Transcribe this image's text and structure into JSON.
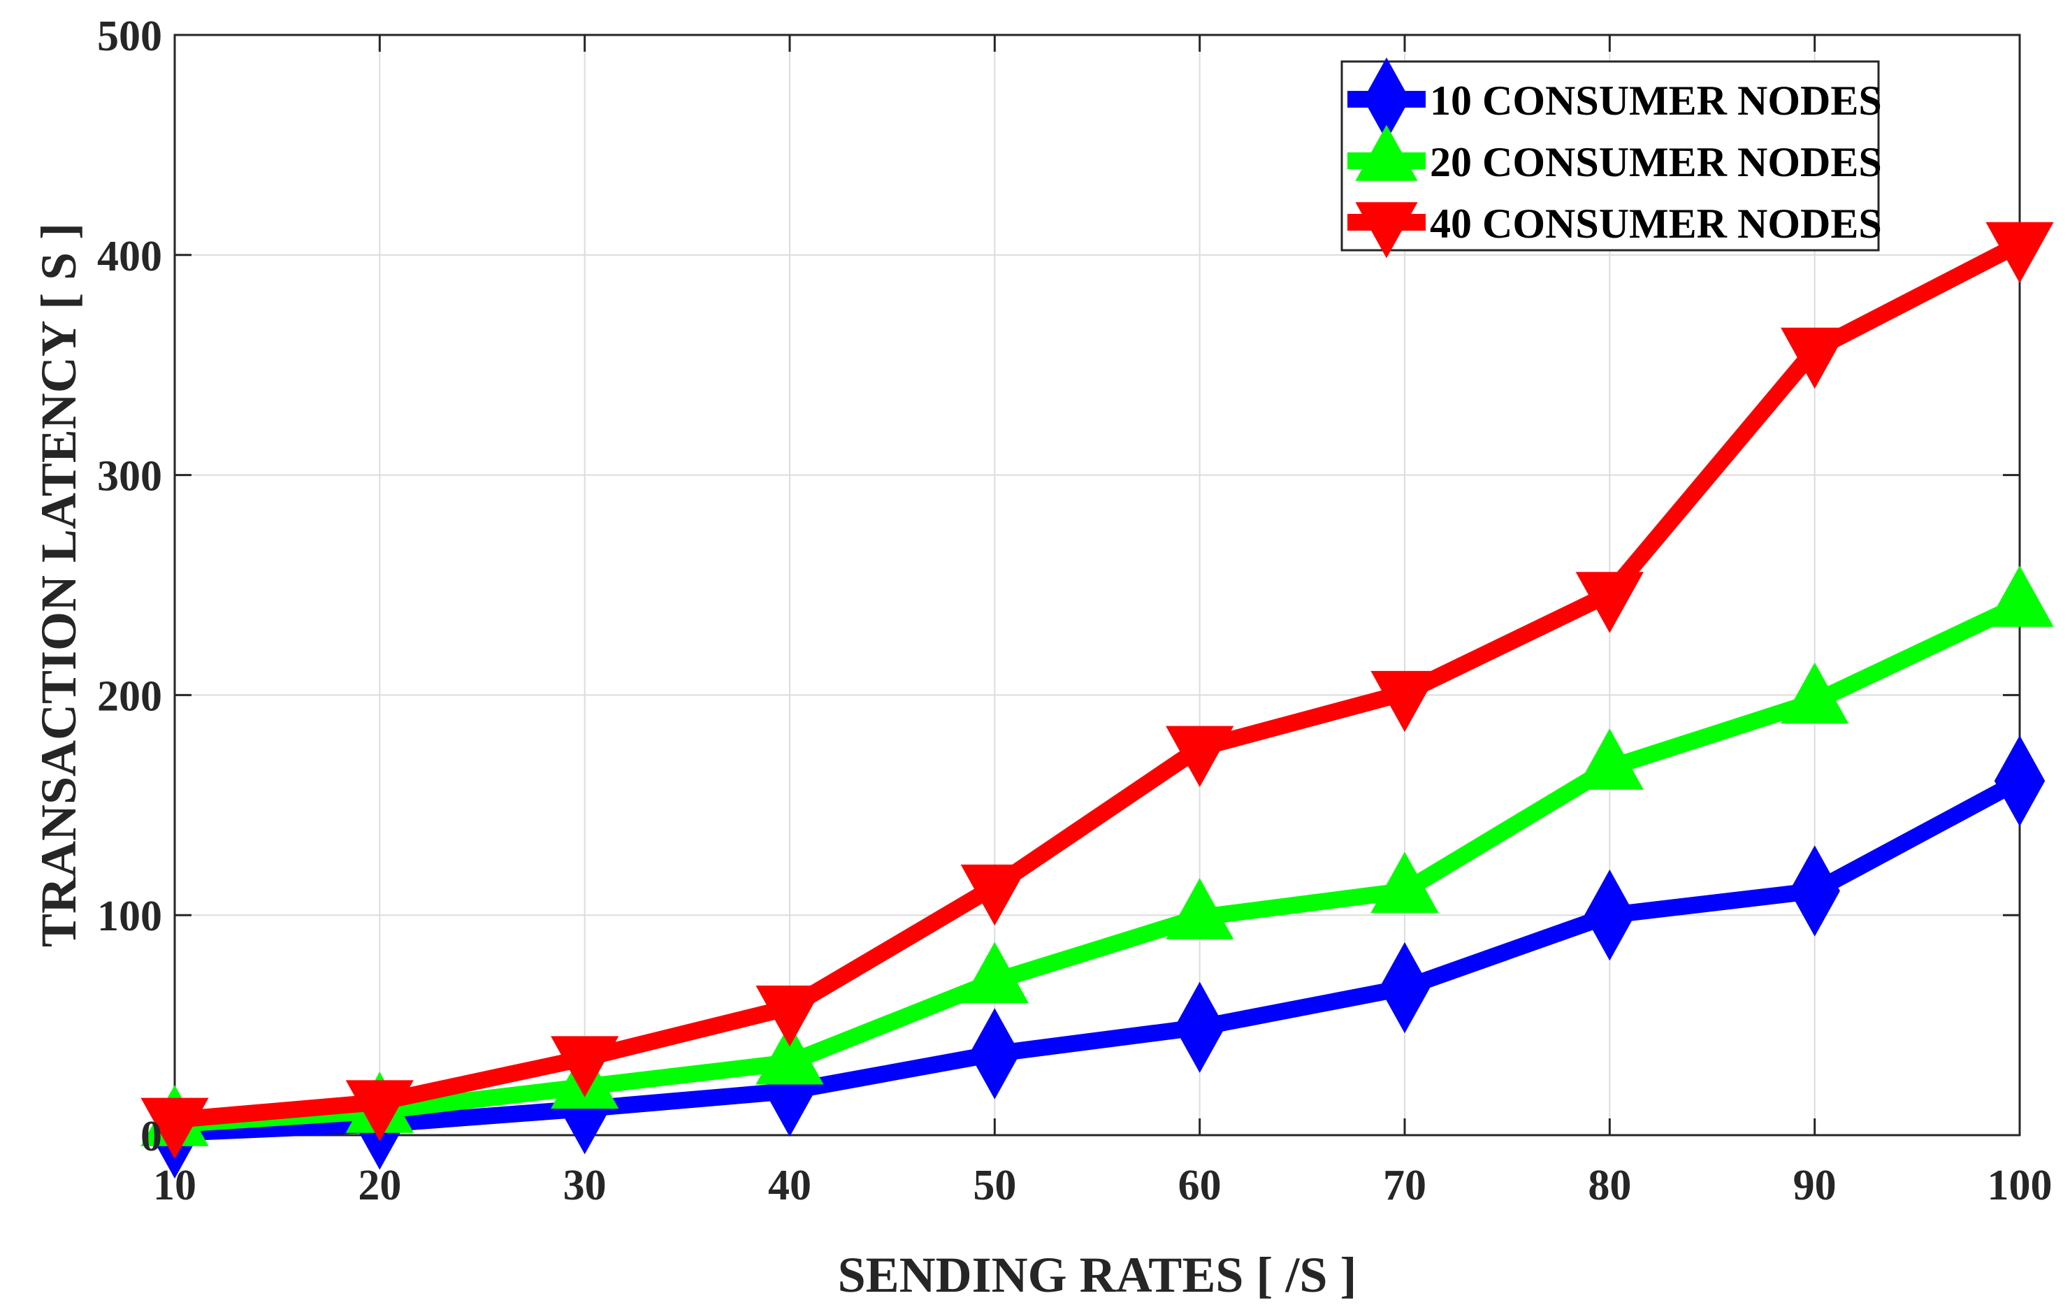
{
  "chart_data": {
    "type": "line",
    "title": "",
    "xlabel": "SENDING RATES [ /S ]",
    "ylabel": "TRANSACTION LATENCY [ S ]",
    "x": [
      10,
      20,
      30,
      40,
      50,
      60,
      70,
      80,
      90,
      100
    ],
    "xlim": [
      10,
      100
    ],
    "ylim": [
      0,
      500
    ],
    "xticks": [
      "10",
      "20",
      "30",
      "40",
      "50",
      "60",
      "70",
      "80",
      "90",
      "100"
    ],
    "yticks": [
      "0",
      "100",
      "200",
      "300",
      "400",
      "500"
    ],
    "xtick_values": [
      10,
      20,
      30,
      40,
      50,
      60,
      70,
      80,
      90,
      100
    ],
    "ytick_values": [
      0,
      100,
      200,
      300,
      400,
      500
    ],
    "grid": true,
    "legend_position": "top-right",
    "series": [
      {
        "name": "10 CONSUMER NODES",
        "color": "#0000ff",
        "marker": "diamond",
        "values": [
          1,
          5,
          12,
          20,
          37,
          49,
          67,
          100,
          111,
          161
        ]
      },
      {
        "name": "20 CONSUMER NODES",
        "color": "#00ff00",
        "marker": "triangle-up",
        "values": [
          5,
          11,
          22,
          33,
          70,
          99,
          111,
          167,
          197,
          241
        ]
      },
      {
        "name": "40 CONSUMER NODES",
        "color": "#ff0000",
        "marker": "triangle-down",
        "values": [
          7,
          15,
          35,
          58,
          113,
          176,
          201,
          246,
          357,
          405
        ]
      }
    ]
  }
}
